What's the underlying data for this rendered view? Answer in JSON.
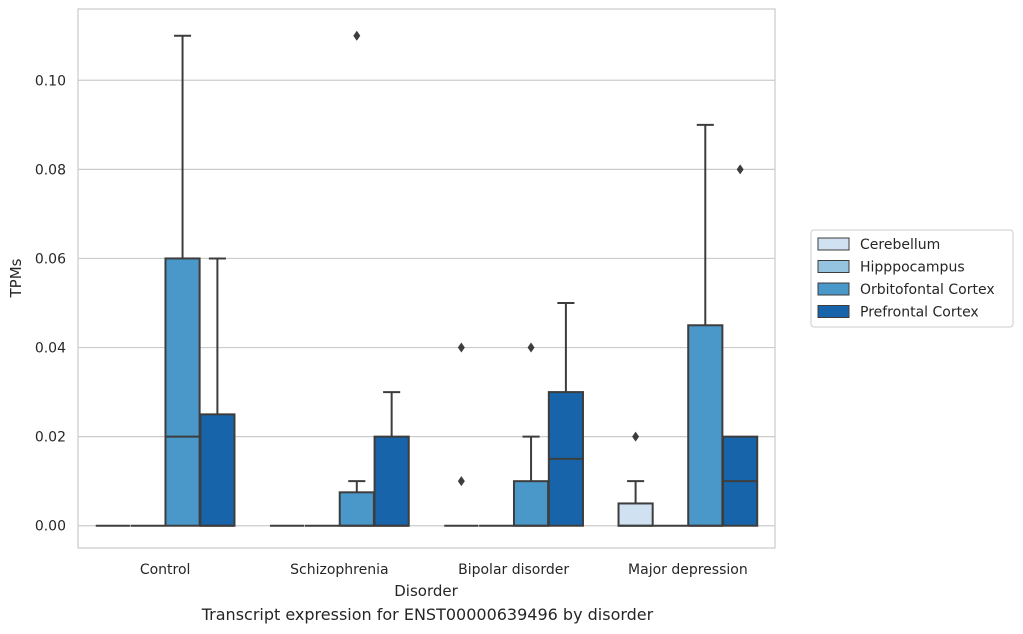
{
  "caption": "Transcript expression for ENST00000639496 by disorder",
  "chart_data": {
    "type": "boxplot",
    "title": "",
    "xlabel": "Disorder",
    "ylabel": "TPMs",
    "ylim": [
      -0.005,
      0.116
    ],
    "yticks": [
      0.0,
      0.02,
      0.04,
      0.06,
      0.08,
      0.1
    ],
    "ytick_labels": [
      "0.00",
      "0.02",
      "0.04",
      "0.06",
      "0.08",
      "0.10"
    ],
    "grid": "horizontal",
    "legend_position": "right",
    "categories": [
      "Control",
      "Schizophrenia",
      "Bipolar disorder",
      "Major depression"
    ],
    "series": [
      {
        "name": "Cerebellum",
        "color": "#d0e1f2",
        "boxes": [
          {
            "q1": 0,
            "median": 0,
            "q3": 0,
            "whisker_low": 0,
            "whisker_high": 0,
            "outliers": []
          },
          {
            "q1": 0,
            "median": 0,
            "q3": 0,
            "whisker_low": 0,
            "whisker_high": 0,
            "outliers": []
          },
          {
            "q1": 0,
            "median": 0,
            "q3": 0,
            "whisker_low": 0,
            "whisker_high": 0,
            "outliers": [
              0.01,
              0.04
            ]
          },
          {
            "q1": 0,
            "median": 0,
            "q3": 0.005,
            "whisker_low": 0,
            "whisker_high": 0.01,
            "outliers": [
              0.02
            ]
          }
        ]
      },
      {
        "name": "Hipppocampus",
        "color": "#94c4df",
        "boxes": [
          {
            "q1": 0,
            "median": 0,
            "q3": 0,
            "whisker_low": 0,
            "whisker_high": 0,
            "outliers": []
          },
          {
            "q1": 0,
            "median": 0,
            "q3": 0,
            "whisker_low": 0,
            "whisker_high": 0,
            "outliers": []
          },
          {
            "q1": 0,
            "median": 0,
            "q3": 0,
            "whisker_low": 0,
            "whisker_high": 0,
            "outliers": []
          },
          {
            "q1": 0,
            "median": 0,
            "q3": 0,
            "whisker_low": 0,
            "whisker_high": 0,
            "outliers": []
          }
        ]
      },
      {
        "name": "Orbitofontal Cortex",
        "color": "#4a98c9",
        "boxes": [
          {
            "q1": 0,
            "median": 0.02,
            "q3": 0.06,
            "whisker_low": 0,
            "whisker_high": 0.11,
            "outliers": []
          },
          {
            "q1": 0,
            "median": 0,
            "q3": 0.0075,
            "whisker_low": 0,
            "whisker_high": 0.01,
            "outliers": [
              0.11
            ]
          },
          {
            "q1": 0,
            "median": 0,
            "q3": 0.01,
            "whisker_low": 0,
            "whisker_high": 0.02,
            "outliers": [
              0.04
            ]
          },
          {
            "q1": 0,
            "median": 0,
            "q3": 0.045,
            "whisker_low": 0,
            "whisker_high": 0.09,
            "outliers": []
          }
        ]
      },
      {
        "name": "Prefrontal Cortex",
        "color": "#1764ab",
        "boxes": [
          {
            "q1": 0,
            "median": 0,
            "q3": 0.025,
            "whisker_low": 0,
            "whisker_high": 0.06,
            "outliers": []
          },
          {
            "q1": 0,
            "median": 0,
            "q3": 0.02,
            "whisker_low": 0,
            "whisker_high": 0.03,
            "outliers": []
          },
          {
            "q1": 0,
            "median": 0.015,
            "q3": 0.03,
            "whisker_low": 0,
            "whisker_high": 0.05,
            "outliers": []
          },
          {
            "q1": 0,
            "median": 0.01,
            "q3": 0.02,
            "whisker_low": 0,
            "whisker_high": 0.02,
            "outliers": [
              0.08
            ]
          }
        ]
      }
    ]
  }
}
